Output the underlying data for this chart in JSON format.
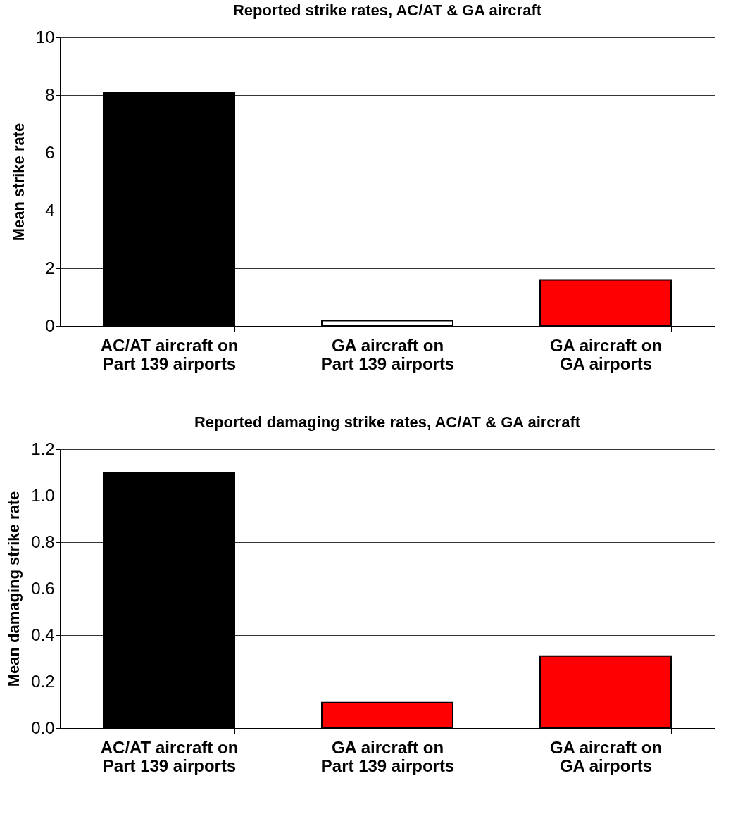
{
  "chart_data": [
    {
      "type": "bar",
      "title": "Reported strike rates, AC/AT & GA aircraft",
      "ylabel": "Mean strike rate",
      "categories": [
        "AC/AT aircraft on Part 139 airports",
        "GA aircraft on Part 139 airports",
        "GA aircraft on GA airports"
      ],
      "values": [
        8.1,
        0.18,
        1.6
      ],
      "colors": [
        "#000000",
        "#ffffff",
        "#ff0000"
      ],
      "ylim": [
        0,
        10
      ],
      "yticks": [
        0,
        2,
        4,
        6,
        8,
        10
      ],
      "grid": "y"
    },
    {
      "type": "bar",
      "title": "Reported damaging strike rates, AC/AT & GA aircraft",
      "ylabel": "Mean damaging strike rate",
      "categories": [
        "AC/AT aircraft on Part 139 airports",
        "GA aircraft on Part 139 airports",
        "GA aircraft on GA airports"
      ],
      "values": [
        1.1,
        0.11,
        0.31
      ],
      "colors": [
        "#000000",
        "#ff0000",
        "#ff0000"
      ],
      "ylim": [
        0,
        1.2
      ],
      "yticks": [
        {
          "value": 0,
          "label": "0.0"
        },
        {
          "value": 0.2,
          "label": "0.2"
        },
        {
          "value": 0.4,
          "label": "0.4"
        },
        {
          "value": 0.6,
          "label": "0.6"
        },
        {
          "value": 0.8,
          "label": "0.8"
        },
        {
          "value": 1,
          "label": "1.0"
        },
        {
          "value": 1.2,
          "label": "1.2"
        }
      ],
      "grid": "y"
    }
  ]
}
